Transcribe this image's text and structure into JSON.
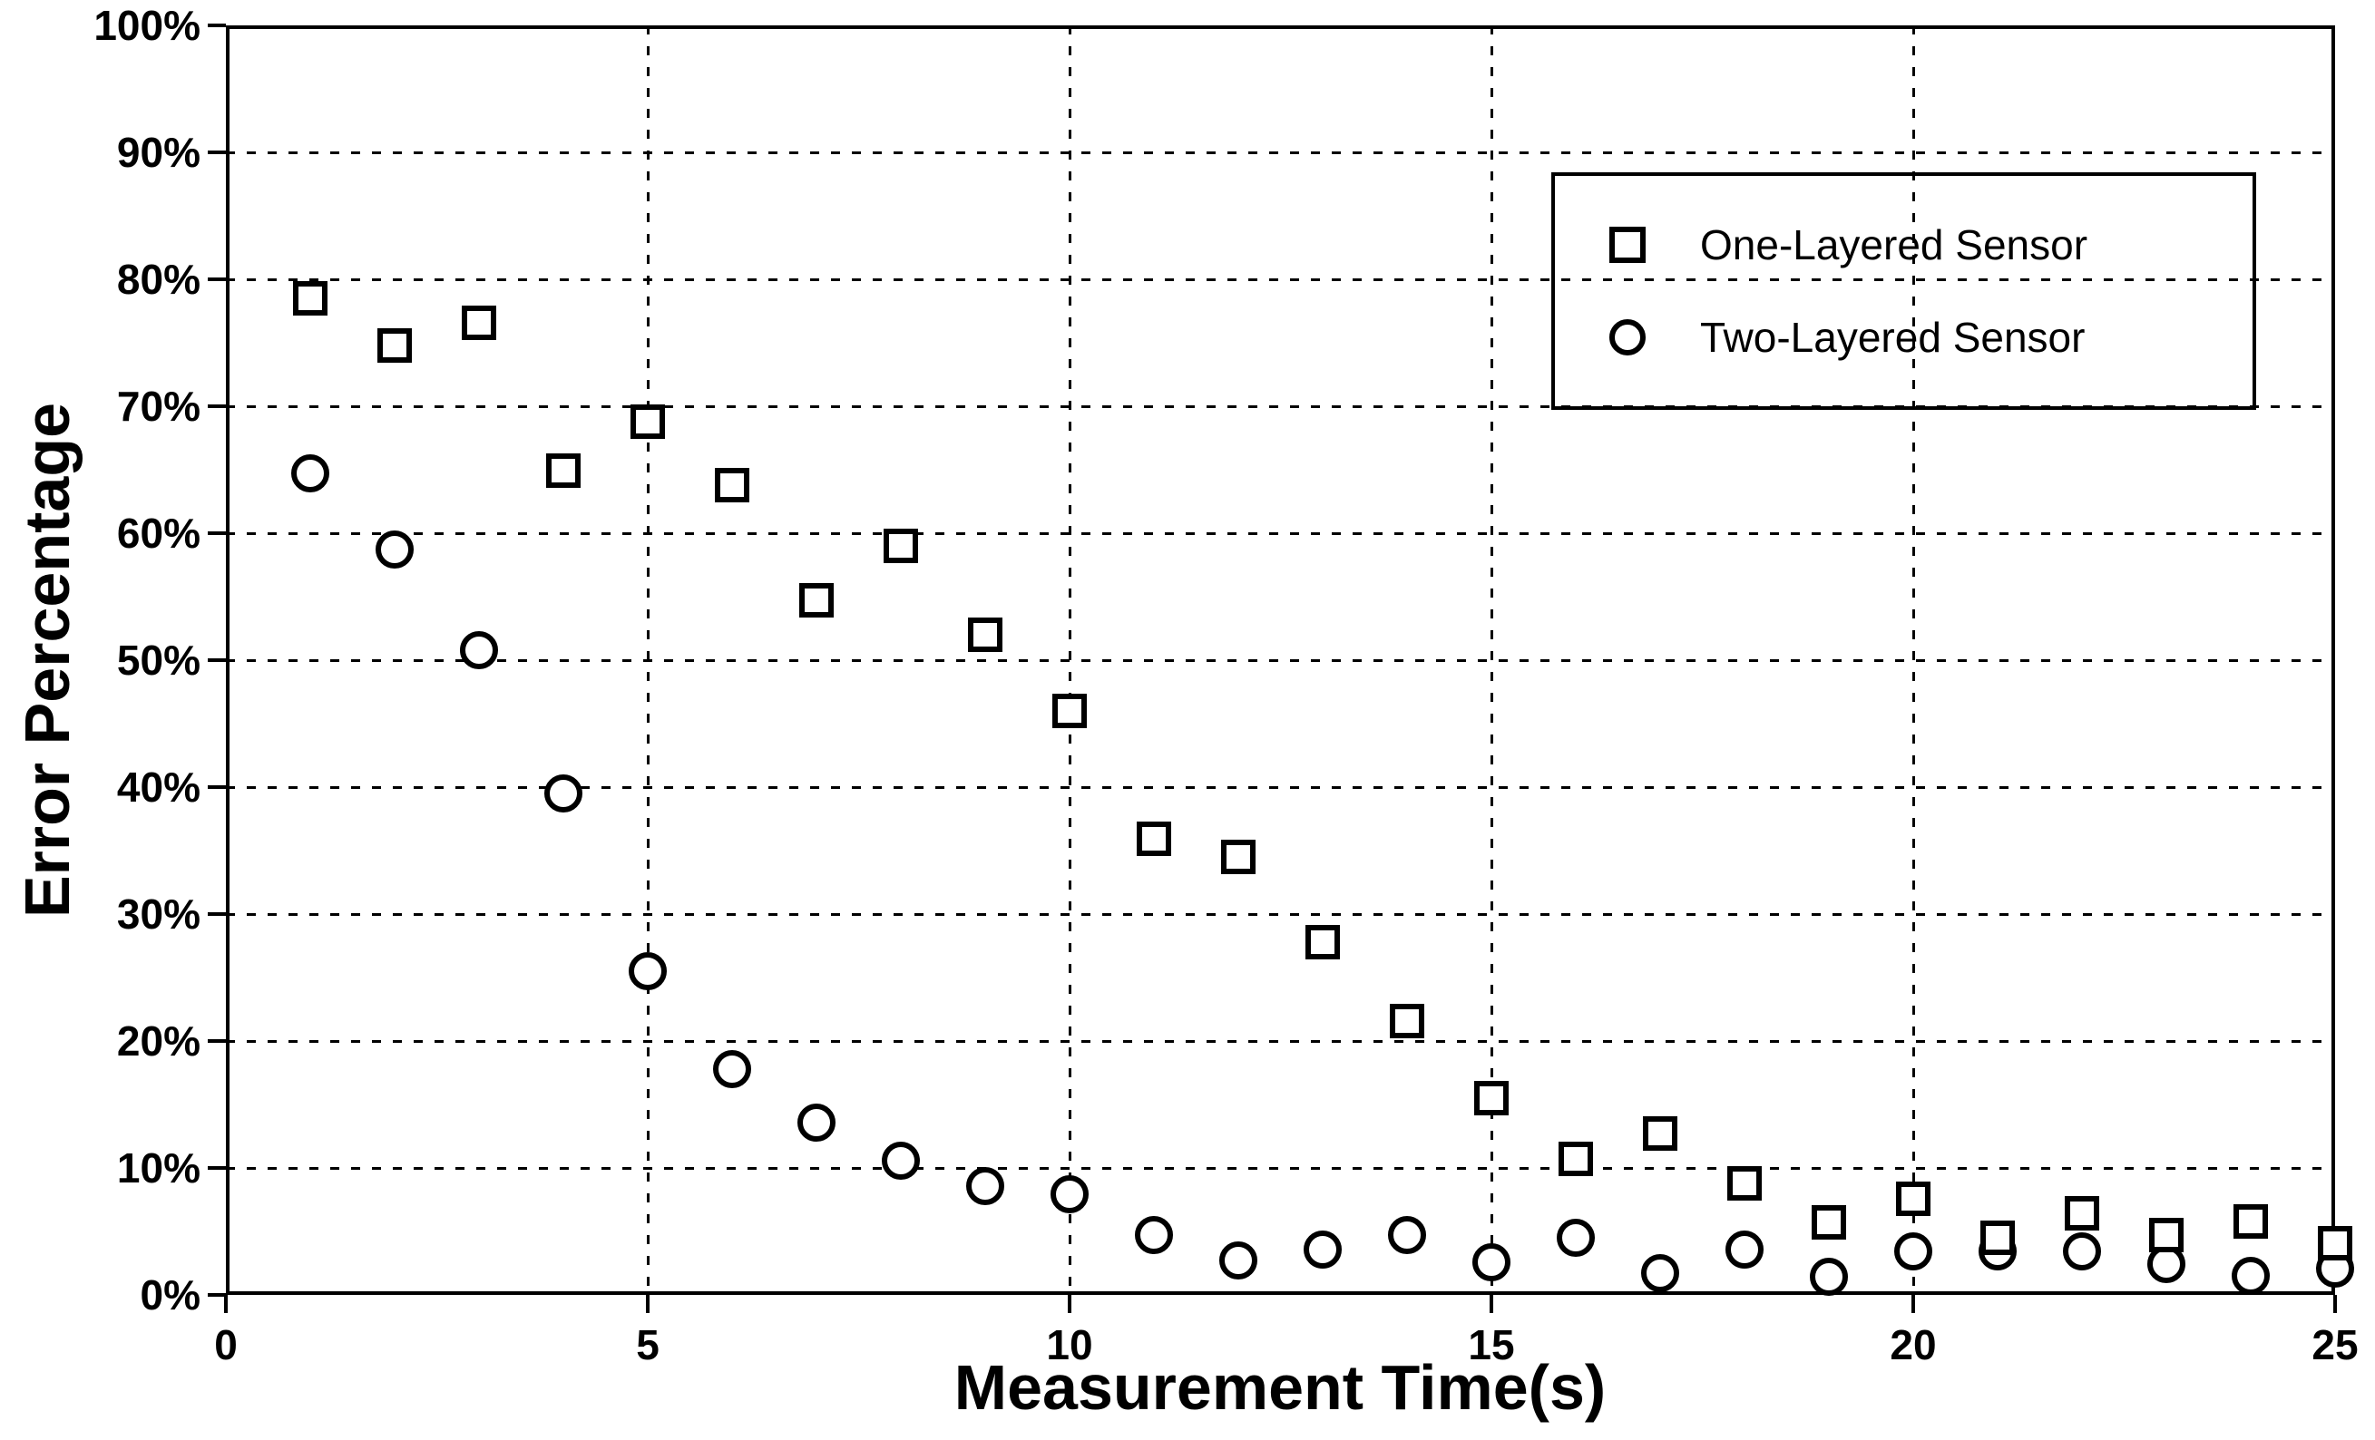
{
  "colors": {
    "foreground": "#000000",
    "background": "#ffffff"
  },
  "chart_data": {
    "type": "scatter",
    "title": "",
    "xlabel": "Measurement Time(s)",
    "ylabel": "Error Percentage",
    "xlim": [
      0,
      25
    ],
    "ylim": [
      0,
      100
    ],
    "x_ticks": [
      0,
      5,
      10,
      15,
      20,
      25
    ],
    "y_ticks": [
      0,
      10,
      20,
      30,
      40,
      50,
      60,
      70,
      80,
      90,
      100
    ],
    "y_tick_suffix": "%",
    "grid": "dashed",
    "grid_x_lines": [
      5,
      10,
      15,
      20
    ],
    "grid_y_lines": [
      10,
      20,
      30,
      40,
      50,
      60,
      70,
      80,
      90
    ],
    "legend_position": "upper-right-inside",
    "x": [
      1,
      2,
      3,
      4,
      5,
      6,
      7,
      8,
      9,
      10,
      11,
      12,
      13,
      14,
      15,
      16,
      17,
      18,
      19,
      20,
      21,
      22,
      23,
      24,
      25
    ],
    "series": [
      {
        "name": "One-Layered Sensor",
        "marker": "square",
        "values": [
          78.5,
          74.8,
          76.6,
          64.9,
          68.8,
          63.8,
          54.7,
          59.0,
          52.0,
          46.0,
          35.9,
          34.5,
          27.8,
          21.6,
          15.5,
          10.7,
          12.7,
          8.8,
          5.7,
          7.6,
          4.5,
          6.4,
          4.7,
          5.8,
          4.1
        ]
      },
      {
        "name": "Two-Layered Sensor",
        "marker": "circle",
        "values": [
          64.7,
          58.7,
          50.8,
          39.5,
          25.5,
          17.8,
          13.6,
          10.6,
          8.6,
          7.9,
          4.7,
          2.7,
          3.6,
          4.7,
          2.6,
          4.5,
          1.7,
          3.6,
          1.4,
          3.4,
          3.4,
          3.4,
          2.4,
          1.5,
          2.1
        ]
      }
    ]
  }
}
